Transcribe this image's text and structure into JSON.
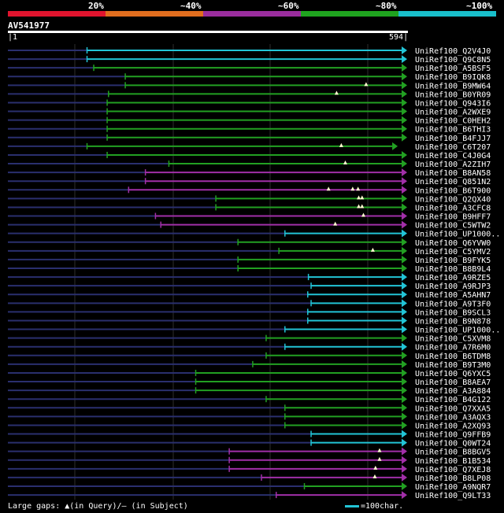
{
  "header": {
    "scale_labels": [
      "20%",
      "~40%",
      "~60%",
      "~80%",
      "~100%"
    ],
    "legend_colors": [
      "#e0142e",
      "#e06d1e",
      "#9a2d9d",
      "#1fa31f",
      "#19bfcb"
    ]
  },
  "query": {
    "id": "AV541977",
    "start": "1",
    "end": "594",
    "length": 594
  },
  "colors": {
    "20": "#e0142e",
    "40": "#e06d1e",
    "60": "#a12fa8",
    "80": "#22a022",
    "100": "#22c4d6",
    "unaligned": "#2a2f6e",
    "grid": "#2e2e2e"
  },
  "chart_data": {
    "type": "alignment",
    "query_length": 594,
    "hits": [
      {
        "name": "UniRef100_Q2V4J0",
        "start": 118,
        "end": 594,
        "cls": "100",
        "gaps": []
      },
      {
        "name": "UniRef100_Q9C8N5",
        "start": 118,
        "end": 594,
        "cls": "100",
        "gaps": []
      },
      {
        "name": "UniRef100_A5BSF5",
        "start": 128,
        "end": 594,
        "cls": "80",
        "gaps": []
      },
      {
        "name": "UniRef100_B9IQK8",
        "start": 175,
        "end": 594,
        "cls": "80",
        "gaps": []
      },
      {
        "name": "UniRef100_B9MW64",
        "start": 175,
        "end": 594,
        "cls": "80",
        "gaps": [
          534
        ]
      },
      {
        "name": "UniRef100_B0YR09",
        "start": 150,
        "end": 594,
        "cls": "80",
        "gaps": [
          490
        ]
      },
      {
        "name": "UniRef100_Q943I6",
        "start": 148,
        "end": 594,
        "cls": "80",
        "gaps": []
      },
      {
        "name": "UniRef100_A2WXE9",
        "start": 148,
        "end": 594,
        "cls": "80",
        "gaps": []
      },
      {
        "name": "UniRef100_C0HEH2",
        "start": 148,
        "end": 594,
        "cls": "80",
        "gaps": []
      },
      {
        "name": "UniRef100_B6THI3",
        "start": 148,
        "end": 594,
        "cls": "80",
        "gaps": []
      },
      {
        "name": "UniRef100_B4FJJ7",
        "start": 148,
        "end": 594,
        "cls": "80",
        "gaps": []
      },
      {
        "name": "UniRef100_C6T207",
        "start": 118,
        "end": 580,
        "cls": "80",
        "gaps": [
          497
        ]
      },
      {
        "name": "UniRef100_C4J0G4",
        "start": 148,
        "end": 594,
        "cls": "80",
        "gaps": []
      },
      {
        "name": "UniRef100_A2ZIH7",
        "start": 240,
        "end": 594,
        "cls": "80",
        "gaps": [
          503
        ]
      },
      {
        "name": "UniRef100_B8AN58",
        "start": 205,
        "end": 594,
        "cls": "60",
        "gaps": []
      },
      {
        "name": "UniRef100_Q851N2",
        "start": 205,
        "end": 594,
        "cls": "60",
        "gaps": []
      },
      {
        "name": "UniRef100_B6T900",
        "start": 180,
        "end": 594,
        "cls": "60",
        "gaps": [
          478,
          514,
          522
        ]
      },
      {
        "name": "UniRef100_Q2QX40",
        "start": 310,
        "end": 594,
        "cls": "80",
        "gaps": [
          523,
          528
        ]
      },
      {
        "name": "UniRef100_A3CFC8",
        "start": 310,
        "end": 594,
        "cls": "80",
        "gaps": [
          523,
          528
        ]
      },
      {
        "name": "UniRef100_B9HFF7",
        "start": 220,
        "end": 594,
        "cls": "60",
        "gaps": [
          530
        ]
      },
      {
        "name": "UniRef100_C5WTW2",
        "start": 228,
        "end": 594,
        "cls": "60",
        "gaps": [
          488
        ]
      },
      {
        "name": "UniRef100_UP1000..",
        "start": 413,
        "end": 594,
        "cls": "100",
        "gaps": []
      },
      {
        "name": "UniRef100_Q6YVW0",
        "start": 343,
        "end": 594,
        "cls": "80",
        "gaps": []
      },
      {
        "name": "UniRef100_C5YMV2",
        "start": 404,
        "end": 594,
        "cls": "80",
        "gaps": [
          544
        ]
      },
      {
        "name": "UniRef100_B9FYK5",
        "start": 343,
        "end": 594,
        "cls": "80",
        "gaps": []
      },
      {
        "name": "UniRef100_B8B9L4",
        "start": 343,
        "end": 594,
        "cls": "80",
        "gaps": []
      },
      {
        "name": "UniRef100_A9RZE5",
        "start": 448,
        "end": 594,
        "cls": "100",
        "gaps": []
      },
      {
        "name": "UniRef100_A9RJP3",
        "start": 452,
        "end": 594,
        "cls": "100",
        "gaps": []
      },
      {
        "name": "UniRef100_A5AHN7",
        "start": 447,
        "end": 594,
        "cls": "100",
        "gaps": []
      },
      {
        "name": "UniRef100_A9T3F0",
        "start": 452,
        "end": 594,
        "cls": "100",
        "gaps": []
      },
      {
        "name": "UniRef100_B9SCL3",
        "start": 447,
        "end": 594,
        "cls": "100",
        "gaps": []
      },
      {
        "name": "UniRef100_B9N878",
        "start": 447,
        "end": 594,
        "cls": "100",
        "gaps": []
      },
      {
        "name": "UniRef100_UP1000..",
        "start": 413,
        "end": 594,
        "cls": "100",
        "gaps": []
      },
      {
        "name": "UniRef100_C5XVM8",
        "start": 385,
        "end": 594,
        "cls": "80",
        "gaps": []
      },
      {
        "name": "UniRef100_A7R6M0",
        "start": 413,
        "end": 594,
        "cls": "100",
        "gaps": []
      },
      {
        "name": "UniRef100_B6TDM8",
        "start": 385,
        "end": 594,
        "cls": "80",
        "gaps": []
      },
      {
        "name": "UniRef100_B9T3M0",
        "start": 365,
        "end": 594,
        "cls": "80",
        "gaps": []
      },
      {
        "name": "UniRef100_Q6YXC5",
        "start": 280,
        "end": 594,
        "cls": "80",
        "gaps": []
      },
      {
        "name": "UniRef100_B8AEA7",
        "start": 280,
        "end": 594,
        "cls": "80",
        "gaps": []
      },
      {
        "name": "UniRef100_A3A884",
        "start": 280,
        "end": 594,
        "cls": "80",
        "gaps": []
      },
      {
        "name": "UniRef100_B4G122",
        "start": 385,
        "end": 594,
        "cls": "80",
        "gaps": []
      },
      {
        "name": "UniRef100_Q7XXA5",
        "start": 413,
        "end": 594,
        "cls": "80",
        "gaps": []
      },
      {
        "name": "UniRef100_A3AQX3",
        "start": 413,
        "end": 594,
        "cls": "80",
        "gaps": []
      },
      {
        "name": "UniRef100_A2XQ93",
        "start": 413,
        "end": 594,
        "cls": "80",
        "gaps": []
      },
      {
        "name": "UniRef100_Q9FFB9",
        "start": 452,
        "end": 594,
        "cls": "100",
        "gaps": []
      },
      {
        "name": "UniRef100_Q0WT24",
        "start": 452,
        "end": 594,
        "cls": "100",
        "gaps": []
      },
      {
        "name": "UniRef100_B8BGV5",
        "start": 330,
        "end": 594,
        "cls": "60",
        "gaps": [
          554
        ]
      },
      {
        "name": "UniRef100_B1B534",
        "start": 330,
        "end": 594,
        "cls": "60",
        "gaps": [
          554
        ]
      },
      {
        "name": "UniRef100_Q7XEJ8",
        "start": 330,
        "end": 594,
        "cls": "60",
        "gaps": [
          548
        ]
      },
      {
        "name": "UniRef100_B8LP08",
        "start": 378,
        "end": 594,
        "cls": "60",
        "gaps": [
          547
        ]
      },
      {
        "name": "UniRef100_A9NQR7",
        "start": 442,
        "end": 594,
        "cls": "80",
        "gaps": []
      },
      {
        "name": "UniRef100_Q9LT33",
        "start": 400,
        "end": 594,
        "cls": "60",
        "gaps": []
      }
    ]
  },
  "footer": {
    "large_gaps_text": "Large gaps: ▲(in Query)/– (in Subject)",
    "scale_text": "=100char."
  }
}
